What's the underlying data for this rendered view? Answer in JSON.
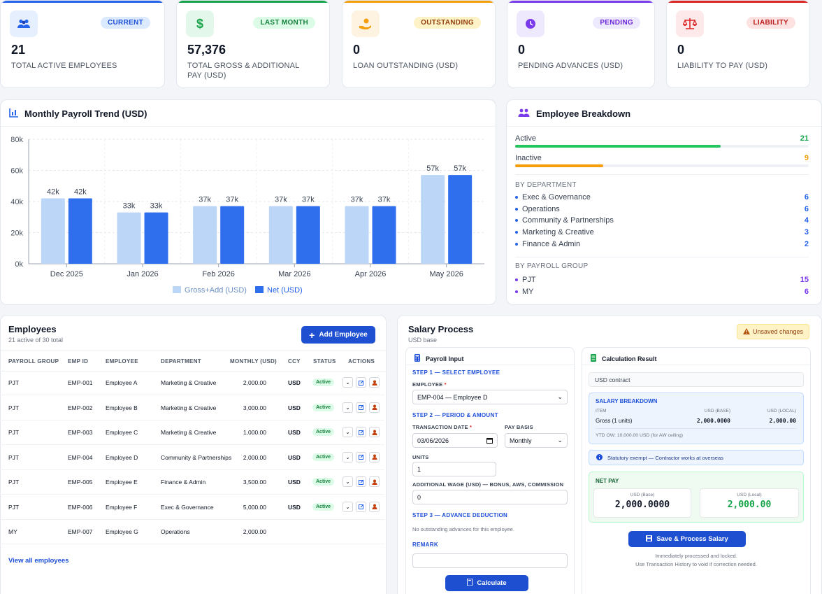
{
  "kpis": [
    {
      "value": "21",
      "label": "TOTAL ACTIVE EMPLOYEES",
      "badge": "CURRENT",
      "accent": "#2563eb",
      "badge_bg": "#dbeafe",
      "badge_fg": "#1d4ed8",
      "icon": "users-icon"
    },
    {
      "value": "57,376",
      "label": "TOTAL GROSS & ADDITIONAL PAY (USD)",
      "badge": "LAST MONTH",
      "accent": "#16a34a",
      "badge_bg": "#dcfce7",
      "badge_fg": "#15803d",
      "icon": "dollar-icon"
    },
    {
      "value": "0",
      "label": "LOAN OUTSTANDING (USD)",
      "badge": "OUTSTANDING",
      "accent": "#f59e0b",
      "badge_bg": "#fef3c7",
      "badge_fg": "#92400e",
      "icon": "hand-coin-icon"
    },
    {
      "value": "0",
      "label": "PENDING ADVANCES (USD)",
      "badge": "PENDING",
      "accent": "#7c3aed",
      "badge_bg": "#ede9fe",
      "badge_fg": "#6d28d9",
      "icon": "clock-icon"
    },
    {
      "value": "0",
      "label": "LIABILITY TO PAY (USD)",
      "badge": "LIABILITY",
      "accent": "#dc2626",
      "badge_bg": "#fee2e2",
      "badge_fg": "#b91c1c",
      "icon": "scale-icon"
    }
  ],
  "trend": {
    "title": "Monthly Payroll Trend (USD)"
  },
  "chart_data": {
    "type": "bar",
    "categories": [
      "Dec 2025",
      "Jan 2026",
      "Feb 2026",
      "Mar 2026",
      "Apr 2026",
      "May 2026"
    ],
    "series": [
      {
        "name": "Gross+Add (USD)",
        "values": [
          42,
          33,
          37,
          37,
          37,
          57
        ],
        "color": "#bcd6f7"
      },
      {
        "name": "Net (USD)",
        "values": [
          42,
          33,
          37,
          37,
          37,
          57
        ],
        "color": "#2f6fed"
      }
    ],
    "data_labels": [
      "42k",
      "33k",
      "37k",
      "37k",
      "37k",
      "57k"
    ],
    "yticks": [
      "0k",
      "20k",
      "40k",
      "60k",
      "80k"
    ],
    "ylim": [
      0,
      80
    ],
    "legend": "bottom",
    "grid": true
  },
  "breakdown": {
    "title": "Employee Breakdown",
    "active_label": "Active",
    "active_count": "21",
    "active_ratio": 0.7,
    "inactive_label": "Inactive",
    "inactive_count": "9",
    "inactive_ratio": 0.3,
    "dept_label": "BY DEPARTMENT",
    "departments": [
      {
        "name": "Exec & Governance",
        "count": "6"
      },
      {
        "name": "Operations",
        "count": "6"
      },
      {
        "name": "Community & Partnerships",
        "count": "4"
      },
      {
        "name": "Marketing & Creative",
        "count": "3"
      },
      {
        "name": "Finance & Admin",
        "count": "2"
      }
    ],
    "group_label": "BY PAYROLL GROUP",
    "groups": [
      {
        "name": "PJT",
        "count": "15"
      },
      {
        "name": "MY",
        "count": "6"
      }
    ]
  },
  "employees": {
    "title": "Employees",
    "subtitle": "21 active of 30 total",
    "add_label": "Add Employee",
    "view_all": "View all employees",
    "headers": [
      "PAYROLL GROUP",
      "EMP ID",
      "EMPLOYEE",
      "DEPARTMENT",
      "MONTHLY (USD)",
      "CCY",
      "STATUS",
      "ACTIONS"
    ],
    "rows": [
      {
        "group": "PJT",
        "id": "EMP-001",
        "name": "Employee A",
        "dept": "Marketing & Creative",
        "monthly": "2,000.00",
        "ccy": "USD",
        "status": "Active"
      },
      {
        "group": "PJT",
        "id": "EMP-002",
        "name": "Employee B",
        "dept": "Marketing & Creative",
        "monthly": "3,000.00",
        "ccy": "USD",
        "status": "Active"
      },
      {
        "group": "PJT",
        "id": "EMP-003",
        "name": "Employee C",
        "dept": "Marketing & Creative",
        "monthly": "1,000.00",
        "ccy": "USD",
        "status": "Active"
      },
      {
        "group": "PJT",
        "id": "EMP-004",
        "name": "Employee D",
        "dept": "Community & Partnerships",
        "monthly": "2,000.00",
        "ccy": "USD",
        "status": "Active"
      },
      {
        "group": "PJT",
        "id": "EMP-005",
        "name": "Employee E",
        "dept": "Finance & Admin",
        "monthly": "3,500.00",
        "ccy": "USD",
        "status": "Active"
      },
      {
        "group": "PJT",
        "id": "EMP-006",
        "name": "Employee F",
        "dept": "Exec & Governance",
        "monthly": "5,000.00",
        "ccy": "USD",
        "status": "Active"
      },
      {
        "group": "MY",
        "id": "EMP-007",
        "name": "Employee G",
        "dept": "Operations",
        "monthly": "2,000.00",
        "ccy": "",
        "status": ""
      }
    ]
  },
  "salary": {
    "title": "Salary Process",
    "subtitle": "USD base",
    "unsaved": "Unsaved changes",
    "input_title": "Payroll Input",
    "step1": "STEP 1 — SELECT EMPLOYEE",
    "employee_label": "EMPLOYEE",
    "employee_value": "EMP-004 — Employee D",
    "step2": "STEP 2 — PERIOD & AMOUNT",
    "date_label": "TRANSACTION DATE",
    "date_value": "03/06/2026",
    "basis_label": "PAY BASIS",
    "basis_value": "Monthly",
    "units_label": "UNITS",
    "units_value": "1",
    "addwage_label": "ADDITIONAL WAGE (USD) — BONUS, AWS, COMMISSION",
    "addwage_value": "0",
    "step3": "STEP 3 — ADVANCE DEDUCTION",
    "no_adv": "No outstanding advances for this employee.",
    "remark_label": "REMARK",
    "remark_value": "",
    "calc_label": "Calculate",
    "result_title": "Calculation Result",
    "contract": "USD contract",
    "breakdown_title": "SALARY BREAKDOWN",
    "col_item": "ITEM",
    "col_base": "USD (BASE)",
    "col_local": "USD (LOCAL)",
    "row_item": "Gross (1 units)",
    "row_base": "2,000.0000",
    "row_local": "2,000.00",
    "ytd": "YTD OW: 10,000.00 USD (for AW ceiling)",
    "exempt": "Statutory exempt — Contractor works at overseas",
    "net_title": "NET PAY",
    "net_base_lbl": "USD (Base)",
    "net_base": "2,000.0000",
    "net_local_lbl": "USD (Local)",
    "net_local": "2,000.00",
    "save_label": "Save & Process Salary",
    "note1": "Immediately processed and locked.",
    "note2": "Use Transaction History to void if correction needed."
  }
}
